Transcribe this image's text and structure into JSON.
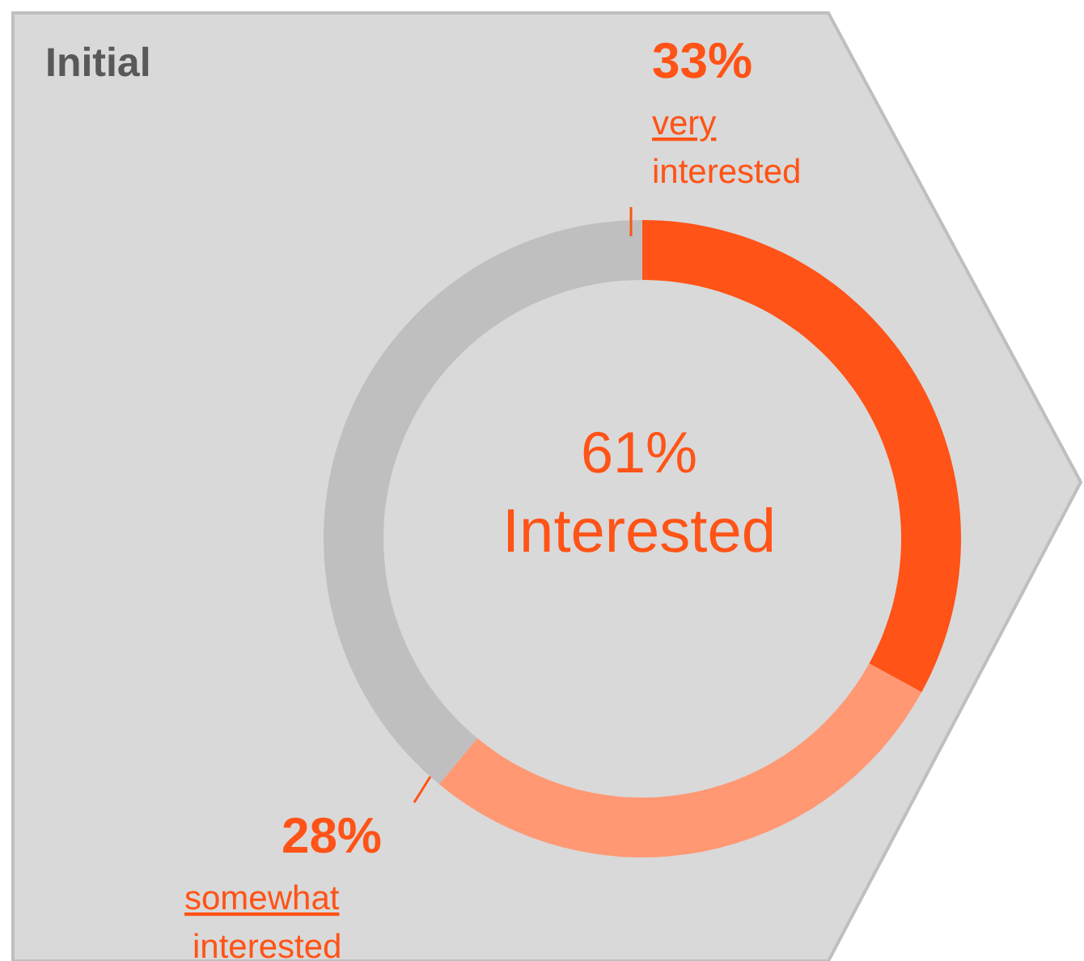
{
  "chart_data": {
    "type": "donut",
    "title": "Initial",
    "categories": [
      "very interested",
      "somewhat interested",
      null
    ],
    "values": [
      33,
      28,
      39
    ],
    "colors": [
      "#ff5317",
      "#ff9873",
      "#bfbfbf"
    ],
    "value_labels": [
      "33%",
      "28%",
      null
    ],
    "annotations": [
      "61%",
      "Interested"
    ]
  }
}
